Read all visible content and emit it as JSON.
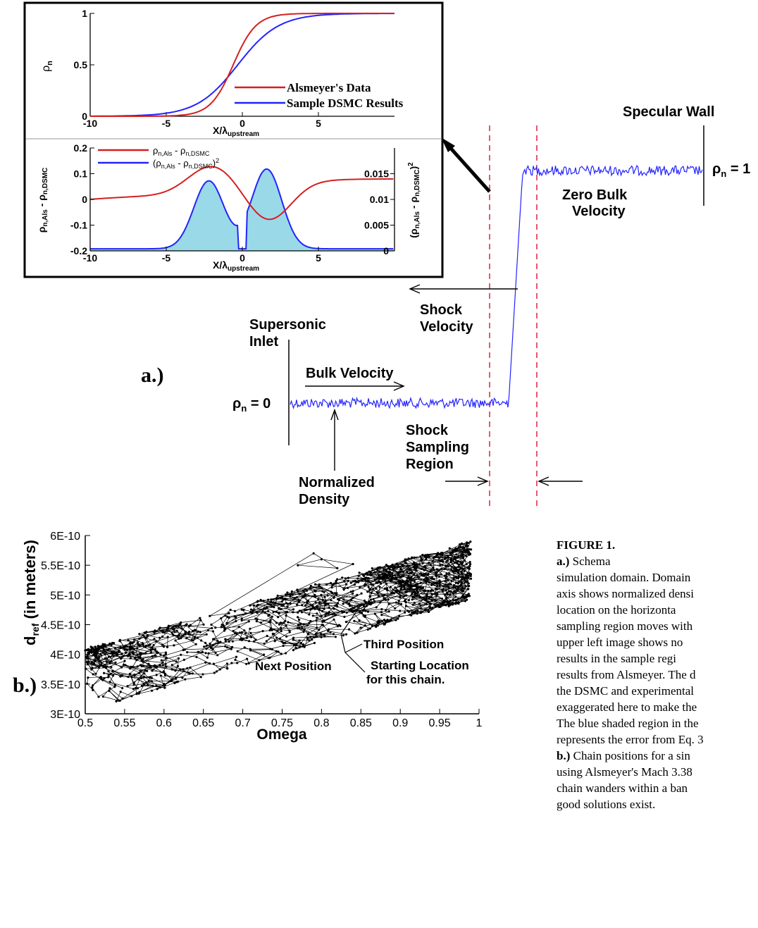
{
  "colors": {
    "alsmeyer": "#d42020",
    "dsmc": "#2323ff",
    "shade": "#9ad9e8",
    "dashed": "#e0203a",
    "chain": "#000000"
  },
  "panel_a": {
    "label": "a.)",
    "specular_wall": "Specular Wall",
    "rho_one": "ρn = 1",
    "rho_one_sym": "ρ",
    "rho_one_sub": "n",
    "rho_one_eq": " = 1",
    "zero_bulk_1": "Zero Bulk",
    "zero_bulk_2": "Velocity",
    "shock_vel_1": "Shock",
    "shock_vel_2": "Velocity",
    "supersonic_1": "Supersonic",
    "supersonic_2": "Inlet",
    "bulk_velocity": "Bulk Velocity",
    "rho_zero_sym": "ρ",
    "rho_zero_sub": "n",
    "rho_zero_eq": " = 0",
    "shock_sampling_1": "Shock",
    "shock_sampling_2": "Sampling",
    "shock_sampling_3": "Region",
    "normalized_1": "Normalized",
    "normalized_2": "Density"
  },
  "inset_top": {
    "ylabel": "ρn",
    "yticks": [
      "1",
      "0.5",
      "0"
    ],
    "xticks": [
      "-10",
      "-5",
      "0",
      "5"
    ],
    "xlabel": "X/λupstream",
    "legend": [
      "Alsmeyer's Data",
      "Sample DSMC Results"
    ]
  },
  "inset_bottom": {
    "ylabel_left": "ρn,Als - ρn,DSMC",
    "ylabel_right": "(ρn,Als - ρn,DSMC)2",
    "yticks_left": [
      "0.2",
      "0.1",
      "0",
      "-0.1",
      "-0.2"
    ],
    "yticks_right": [
      "0.015",
      "0.01",
      "0.005",
      "0"
    ],
    "xticks": [
      "-10",
      "-5",
      "0",
      "5"
    ],
    "xlabel": "X/λupstream",
    "legend": [
      "ρn,Als - ρn,DSMC",
      "(ρn,Als - ρn,DSMC)2"
    ]
  },
  "chart_data": {
    "type": "line",
    "title": "",
    "xlabel": "Omega",
    "ylabel": "dref (in meters)",
    "xlim": [
      0.5,
      1.0
    ],
    "ylim": [
      3e-10,
      6e-10
    ],
    "xticks": [
      "0.5",
      "0.55",
      "0.6",
      "0.65",
      "0.7",
      "0.75",
      "0.8",
      "0.85",
      "0.9",
      "0.95",
      "1"
    ],
    "yticks": [
      "3E-10",
      "3.5E-10",
      "4E-10",
      "4.5E-10",
      "5E-10",
      "5.5E-10",
      "6E-10"
    ],
    "band": {
      "lower_edge": [
        [
          0.5,
          3.05e-10
        ],
        [
          0.7,
          3.6e-10
        ],
        [
          0.85,
          4.3e-10
        ],
        [
          1.0,
          4.95e-10
        ]
      ],
      "upper_edge": [
        [
          0.5,
          4.1e-10
        ],
        [
          0.7,
          4.8e-10
        ],
        [
          0.85,
          5.55e-10
        ],
        [
          1.0,
          5.95e-10
        ]
      ],
      "note_points": 1500
    },
    "annotations": [
      "Third Position",
      "Next Position",
      "Starting Location",
      "for this chain."
    ]
  },
  "panel_b": {
    "label": "b.)"
  },
  "caption": {
    "lines": [
      {
        "bold": "FIGURE 1.",
        "text": "   "
      },
      {
        "bold": "a.)",
        "text": " Schema"
      },
      {
        "bold": "",
        "text": "simulation domain.  Domain"
      },
      {
        "bold": "",
        "text": "axis shows normalized densi"
      },
      {
        "bold": "",
        "text": "location  on  the  horizonta"
      },
      {
        "bold": "",
        "text": "sampling region moves with"
      },
      {
        "bold": "",
        "text": "upper  left  image  shows  no"
      },
      {
        "bold": "",
        "text": "results  in  the  sample  regi"
      },
      {
        "bold": "",
        "text": "results from Alsmeyer.  The d"
      },
      {
        "bold": "",
        "text": "the DSMC and experimental"
      },
      {
        "bold": "",
        "text": "exaggerated here to make the"
      },
      {
        "bold": "",
        "text": "The blue shaded region in the"
      },
      {
        "bold": "",
        "text": "represents the error from Eq. 3"
      },
      {
        "bold": "b.)",
        "text": "  Chain positions for a sin"
      },
      {
        "bold": "",
        "text": "using Alsmeyer's Mach 3.38"
      },
      {
        "bold": "",
        "text": "chain  wanders  within  a  ban"
      },
      {
        "bold": "",
        "text": "good solutions exist."
      }
    ]
  }
}
